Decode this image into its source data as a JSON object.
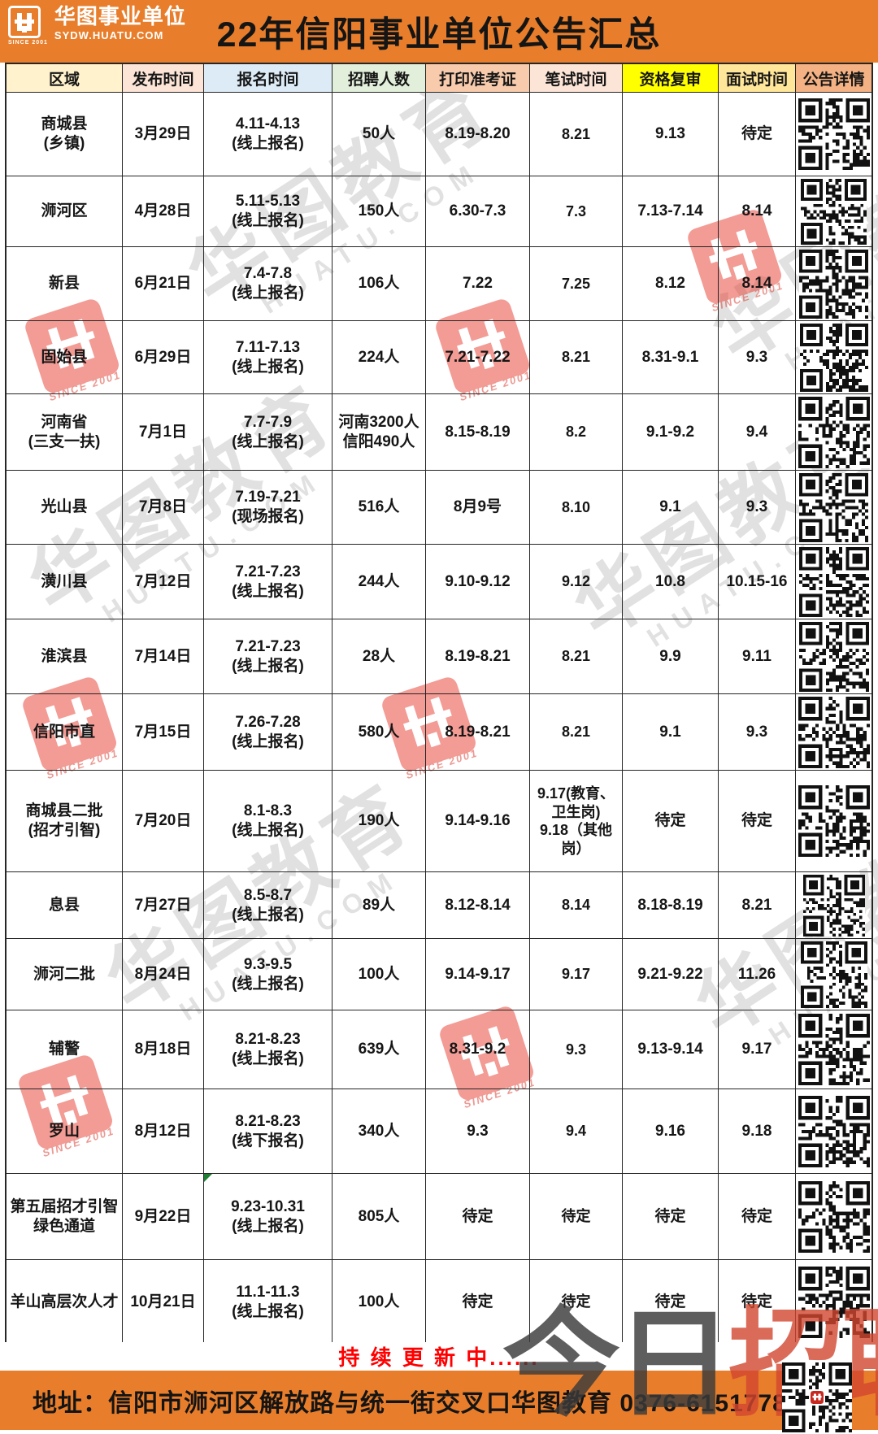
{
  "brand": {
    "name": "华图事业单位",
    "site": "SYDW.HUATU.COM",
    "since": "SINCE 2001"
  },
  "title": "22年信阳事业单位公告汇总",
  "watermark": {
    "cn": "华图教育",
    "en": "HUATU.COM",
    "stamp_since": "SINCE 2001"
  },
  "table": {
    "headers": [
      {
        "label": "区域",
        "bg": "#FFF2CC"
      },
      {
        "label": "发布时间",
        "bg": "#FCE4D6"
      },
      {
        "label": "报名时间",
        "bg": "#DDEBF7"
      },
      {
        "label": "招聘人数",
        "bg": "#E2EFDA"
      },
      {
        "label": "打印准考证",
        "bg": "#F8CBAD"
      },
      {
        "label": "笔试时间",
        "bg": "#FCE4D6"
      },
      {
        "label": "资格复审",
        "bg": "#FFFF00"
      },
      {
        "label": "面试时间",
        "bg": "#FFE699"
      },
      {
        "label": "公告详情",
        "bg": "#F4B183"
      }
    ],
    "rows": [
      {
        "cells": [
          "商城县\n(乡镇)",
          "3月29日",
          "4.11-4.13\n(线上报名)",
          "50人",
          "8.19-8.20",
          "8.21",
          "9.13",
          "待定"
        ]
      },
      {
        "cells": [
          "浉河区",
          "4月28日",
          "5.11-5.13\n(线上报名)",
          "150人",
          "6.30-7.3",
          "7.3",
          "7.13-7.14",
          "8.14"
        ]
      },
      {
        "cells": [
          "新县",
          "6月21日",
          "7.4-7.8\n(线上报名)",
          "106人",
          "7.22",
          "7.25",
          "8.12",
          "8.14"
        ]
      },
      {
        "cells": [
          "固始县",
          "6月29日",
          "7.11-7.13\n(线上报名)",
          "224人",
          "7.21-7.22",
          "8.21",
          "8.31-9.1",
          "9.3"
        ]
      },
      {
        "cells": [
          "河南省\n(三支一扶)",
          "7月1日",
          "7.7-7.9\n(线上报名)",
          "河南3200人\n信阳490人",
          "8.15-8.19",
          "8.2",
          "9.1-9.2",
          "9.4"
        ]
      },
      {
        "cells": [
          "光山县",
          "7月8日",
          "7.19-7.21\n(现场报名)",
          "516人",
          "8月9号",
          "8.10",
          "9.1",
          "9.3"
        ]
      },
      {
        "cells": [
          "潢川县",
          "7月12日",
          "7.21-7.23\n(线上报名)",
          "244人",
          "9.10-9.12",
          "9.12",
          "10.8",
          "10.15-16"
        ]
      },
      {
        "cells": [
          "淮滨县",
          "7月14日",
          "7.21-7.23\n(线上报名)",
          "28人",
          "8.19-8.21",
          "8.21",
          "9.9",
          "9.11"
        ]
      },
      {
        "cells": [
          "信阳市直",
          "7月15日",
          "7.26-7.28\n(线上报名)",
          "580人",
          "8.19-8.21",
          "8.21",
          "9.1",
          "9.3"
        ]
      },
      {
        "cells": [
          "商城县二批\n(招才引智)",
          "7月20日",
          "8.1-8.3\n(线上报名)",
          "190人",
          "9.14-9.16",
          "9.17(教育、\n卫生岗)\n9.18（其他\n岗）",
          "待定",
          "待定"
        ]
      },
      {
        "cells": [
          "息县",
          "7月27日",
          "8.5-8.7\n(线上报名)",
          "89人",
          "8.12-8.14",
          "8.14",
          "8.18-8.19",
          "8.21"
        ]
      },
      {
        "cells": [
          "浉河二批",
          "8月24日",
          "9.3-9.5\n(线上报名)",
          "100人",
          "9.14-9.17",
          "9.17",
          "9.21-9.22",
          "11.26"
        ]
      },
      {
        "cells": [
          "辅警",
          "8月18日",
          "8.21-8.23\n(线上报名)",
          "639人",
          "8.31-9.2",
          "9.3",
          "9.13-9.14",
          "9.17"
        ]
      },
      {
        "cells": [
          "罗山",
          "8月12日",
          "8.21-8.23\n(线下报名)",
          "340人",
          "9.3",
          "9.4",
          "9.16",
          "9.18"
        ]
      },
      {
        "cells": [
          "第五届招才引智\n绿色通道",
          "9月22日",
          "9.23-10.31\n(线上报名)",
          "805人",
          "待定",
          "待定",
          "待定",
          "待定"
        ],
        "note": true
      },
      {
        "cells": [
          "羊山高层次人才",
          "10月21日",
          "11.1-11.3\n(线上报名)",
          "100人",
          "待定",
          "待定",
          "待定",
          "待定"
        ]
      }
    ]
  },
  "footer": {
    "updating": "持 续 更 新 中......",
    "address": "地址：信阳市浉河区解放路与统一街交叉口华图教育   0376-6151778",
    "watermark_gray": "今日",
    "watermark_red": "招聘"
  },
  "colors": {
    "accent_orange": "#E87E2B",
    "highlight_yellow": "#FFFF00",
    "update_red": "#FF0000",
    "stamp_red": "#E8392E"
  }
}
